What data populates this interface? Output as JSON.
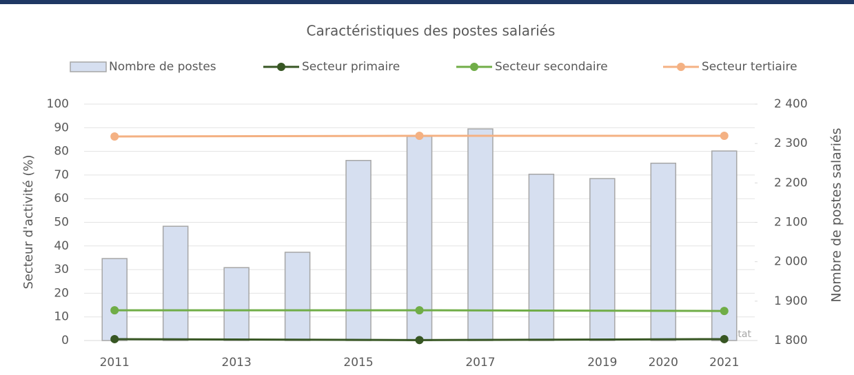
{
  "chart_data": {
    "type": "bar-line",
    "title": "Caractéristiques des postes salariés",
    "ylabel": "Secteur d'activité (%)",
    "y2label": "Nombre de postes salariés",
    "annotation": "Walstat",
    "categories": [
      "2011",
      null,
      "2013",
      null,
      "2015",
      null,
      "2017",
      null,
      "2019",
      "2020",
      "2021"
    ],
    "series": [
      {
        "name": "Nombre de postes",
        "type": "bar",
        "axis": "y2",
        "color": "#d6dff0",
        "edge_color": "#a6a6a6",
        "values": [
          2008,
          2090,
          1985,
          2024,
          2257,
          2318,
          2337,
          2222,
          2211,
          2250,
          2281
        ]
      },
      {
        "name": "Secteur primaire",
        "type": "line",
        "color": "#375623",
        "values": [
          0.6,
          null,
          null,
          null,
          null,
          0.2,
          null,
          null,
          null,
          null,
          0.6
        ]
      },
      {
        "name": "Secteur secondaire",
        "type": "line",
        "color": "#70ad47",
        "values": [
          12.8,
          null,
          null,
          null,
          null,
          12.8,
          null,
          null,
          null,
          null,
          12.5
        ]
      },
      {
        "name": "Secteur tertiaire",
        "type": "line",
        "color": "#f4b183",
        "values": [
          86.3,
          null,
          null,
          null,
          null,
          86.6,
          null,
          null,
          null,
          null,
          86.6
        ]
      }
    ],
    "connect_gaps": true,
    "ylim": [
      0,
      100
    ],
    "yticks": [
      0,
      10,
      20,
      30,
      40,
      50,
      60,
      70,
      80,
      90,
      100
    ],
    "y2lim": [
      1800,
      2400
    ],
    "y2ticks": [
      {
        "value": 1800,
        "label": "1 800"
      },
      {
        "value": 1900,
        "label": "1 900"
      },
      {
        "value": 2000,
        "label": "2 000"
      },
      {
        "value": 2100,
        "label": "2 100"
      },
      {
        "value": 2200,
        "label": "2 200"
      },
      {
        "value": 2300,
        "label": "2 300"
      },
      {
        "value": 2400,
        "label": "2 400"
      }
    ],
    "grid": true,
    "legend": "top"
  }
}
